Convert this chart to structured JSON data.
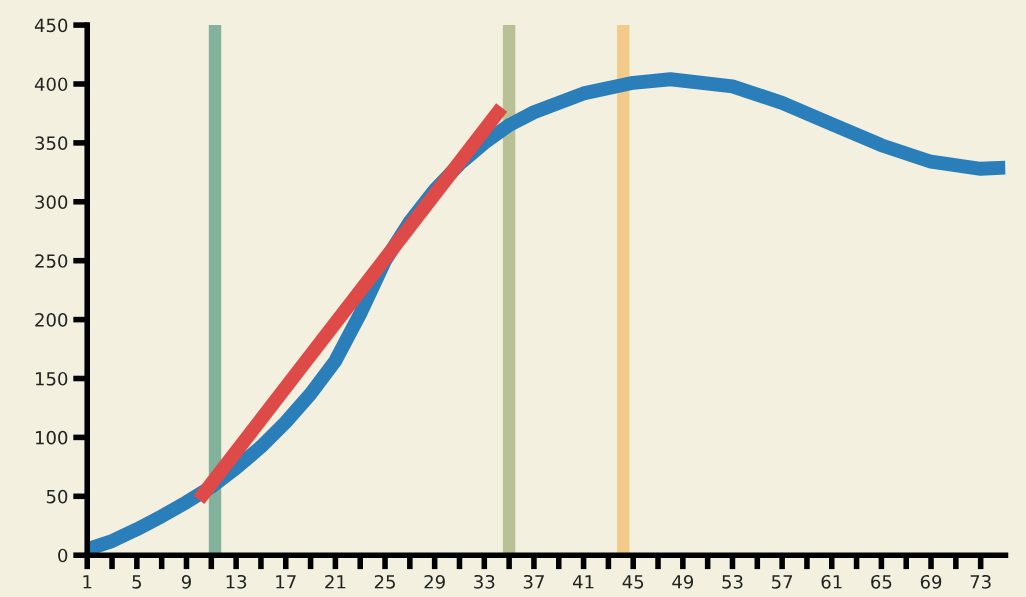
{
  "chart_data": {
    "type": "line",
    "xlim": [
      1,
      75
    ],
    "ylim": [
      0,
      450
    ],
    "xticks": [
      1,
      {
        "value": 3,
        "label": null
      },
      5,
      {
        "value": 7,
        "label": null
      },
      9,
      {
        "value": 11,
        "label": null
      },
      13,
      {
        "value": 15,
        "label": null
      },
      17,
      {
        "value": 19,
        "label": null
      },
      21,
      {
        "value": 23,
        "label": null
      },
      25,
      {
        "value": 27,
        "label": null
      },
      29,
      {
        "value": 31,
        "label": null
      },
      33,
      {
        "value": 35,
        "label": null
      },
      37,
      {
        "value": 39,
        "label": null
      },
      41,
      {
        "value": 43,
        "label": null
      },
      45,
      {
        "value": 47,
        "label": null
      },
      49,
      {
        "value": 51,
        "label": null
      },
      53,
      {
        "value": 55,
        "label": null
      },
      57,
      {
        "value": 59,
        "label": null
      },
      61,
      {
        "value": 63,
        "label": null
      },
      65,
      {
        "value": 67,
        "label": null
      },
      69,
      {
        "value": 71,
        "label": null
      },
      73
    ],
    "yticks": [
      0,
      50,
      100,
      150,
      200,
      250,
      300,
      350,
      400,
      450
    ],
    "grid": false,
    "marker": "none",
    "line_style": "solid",
    "bands": [
      {
        "axis": "x",
        "from": 10.8,
        "to": 11.8,
        "color": "#82b29b"
      },
      {
        "axis": "x",
        "from": 34.5,
        "to": 35.5,
        "color": "#b8c096"
      },
      {
        "axis": "x",
        "from": 43.7,
        "to": 44.7,
        "color": "#f2cb8a"
      }
    ],
    "series": [
      {
        "color": "#2a7fba",
        "x": [
          1,
          3,
          5,
          7,
          9,
          11,
          13,
          15,
          17,
          19,
          21,
          23,
          25,
          27,
          29,
          31,
          33,
          35,
          37,
          41,
          45,
          48,
          53,
          57,
          61,
          65,
          69,
          73,
          75
        ],
        "values": [
          5,
          12,
          22,
          33,
          45,
          58,
          74,
          92,
          113,
          137,
          165,
          205,
          250,
          283,
          310,
          332,
          350,
          365,
          376,
          392,
          401,
          404,
          398,
          384,
          366,
          348,
          334,
          328,
          329
        ]
      },
      {
        "color": "#dd4a48",
        "x": [
          10,
          34.4
        ],
        "values": [
          47,
          380
        ]
      }
    ]
  }
}
